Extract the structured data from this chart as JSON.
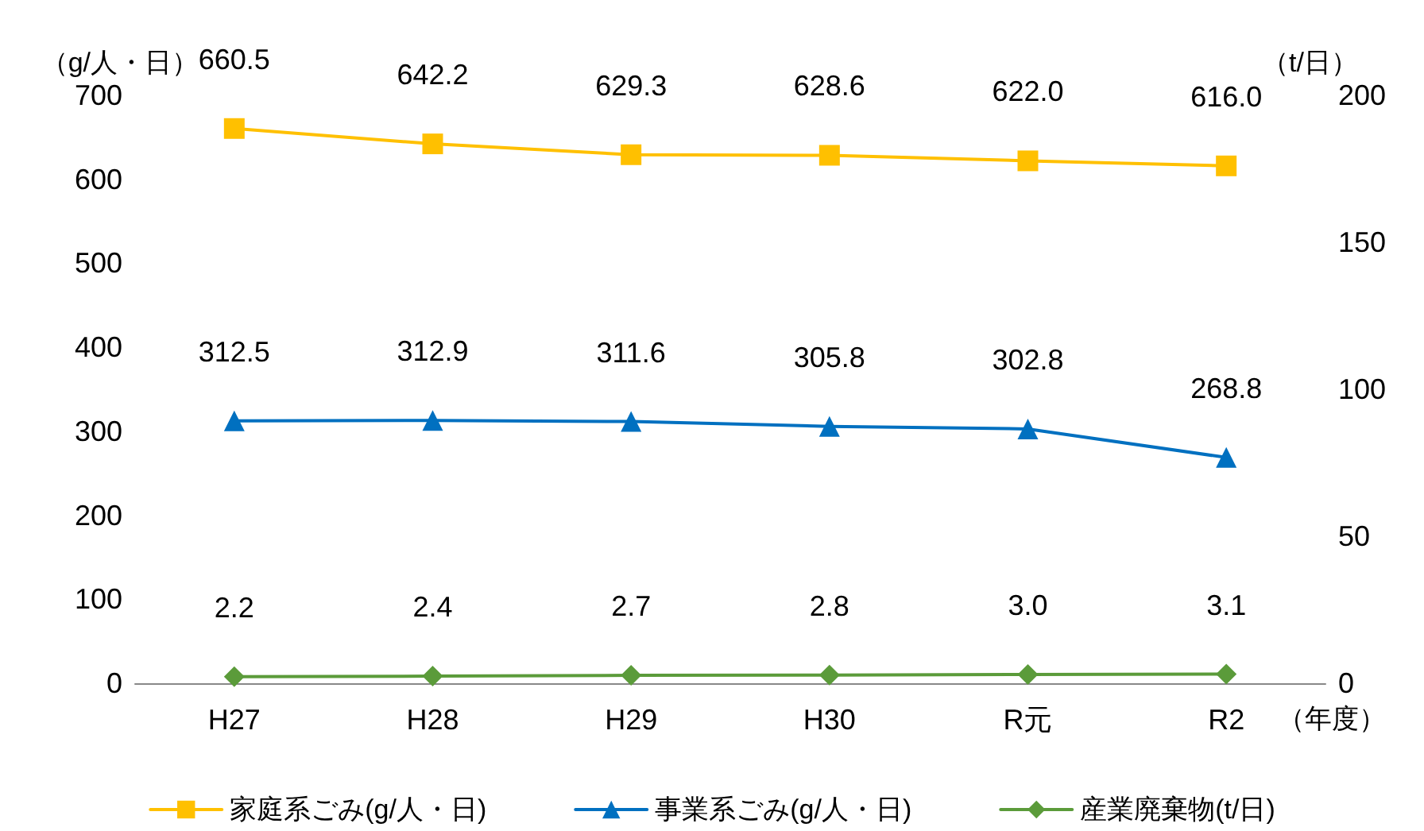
{
  "chart_data": {
    "type": "line",
    "categories": [
      "H27",
      "H28",
      "H29",
      "H30",
      "R元",
      "R2"
    ],
    "xlabel": "（年度）",
    "ylabel": "（g/人・日）",
    "y2label": "（t/日）",
    "ylim": [
      0,
      700
    ],
    "yticks": [
      0,
      100,
      200,
      300,
      400,
      500,
      600,
      700
    ],
    "y2lim": [
      0,
      200
    ],
    "y2ticks": [
      0,
      50,
      100,
      150,
      200
    ],
    "series": [
      {
        "name": "家庭系ごみ(g/人・日)",
        "color": "#ffc000",
        "marker": "square",
        "values": [
          660.5,
          642.2,
          629.3,
          628.6,
          622.0,
          616.0
        ],
        "value_labels": [
          "660.5",
          "642.2",
          "629.3",
          "628.6",
          "622.0",
          "616.0"
        ]
      },
      {
        "name": "事業系ごみ(g/人・日)",
        "color": "#0070c0",
        "marker": "triangle",
        "values": [
          312.5,
          312.9,
          311.6,
          305.8,
          302.8,
          268.8
        ],
        "value_labels": [
          "312.5",
          "312.9",
          "311.6",
          "305.8",
          "302.8",
          "268.8"
        ]
      },
      {
        "name": "産業廃棄物(t/日)",
        "color": "#5b9b3a",
        "marker": "diamond",
        "axis": "y2",
        "values": [
          2.2,
          2.4,
          2.7,
          2.8,
          3.0,
          3.1
        ],
        "value_labels": [
          "2.2",
          "2.4",
          "2.7",
          "2.8",
          "3.0",
          "3.1"
        ]
      }
    ],
    "grid": false,
    "legend": "bottom",
    "line_style": "solid"
  }
}
